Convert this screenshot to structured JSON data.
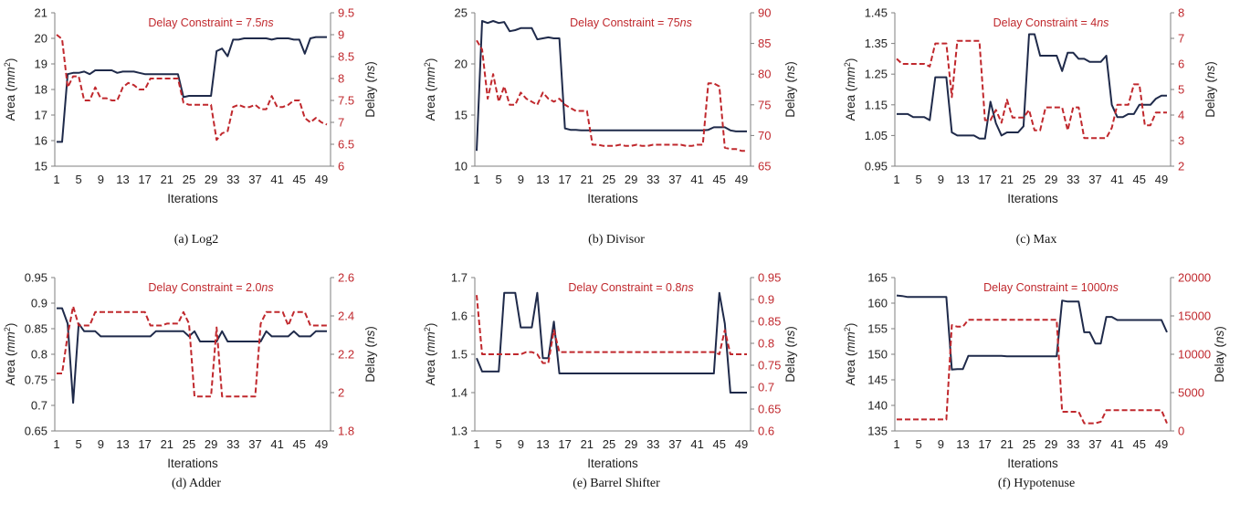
{
  "colors": {
    "area": "#1f2a4a",
    "delay": "#c0282d",
    "axis": "#7f7f7f"
  },
  "chart_data": [
    {
      "type": "line",
      "caption": "(a) Log2",
      "annotation": {
        "prefix": "Delay Constraint = 7.5",
        "unit": "ns"
      },
      "xlabel": "Iterations",
      "ylabel": {
        "text": "Area (",
        "unit": "mm",
        "sup": "2",
        "close": ")"
      },
      "ylabel2": {
        "text": "Delay (",
        "unit": "ns",
        "close": ")"
      },
      "x_ticks": [
        "1",
        "5",
        "9",
        "13",
        "17",
        "21",
        "25",
        "29",
        "33",
        "37",
        "41",
        "45",
        "49"
      ],
      "ylim": [
        15,
        21
      ],
      "yticks": [
        "15",
        "16",
        "17",
        "18",
        "19",
        "20",
        "21"
      ],
      "ylim2": [
        6,
        9.5
      ],
      "yticks2": [
        "6",
        "6.5",
        "7",
        "7.5",
        "8",
        "8.5",
        "9",
        "9.5"
      ],
      "series": [
        {
          "axis": "left",
          "style": "solid",
          "values": [
            15.95,
            15.95,
            18.6,
            18.65,
            18.65,
            18.7,
            18.6,
            18.75,
            18.75,
            18.75,
            18.75,
            18.65,
            18.7,
            18.7,
            18.7,
            18.65,
            18.6,
            18.6,
            18.6,
            18.6,
            18.6,
            18.6,
            18.6,
            17.7,
            17.75,
            17.75,
            17.75,
            17.75,
            17.75,
            19.5,
            19.6,
            19.3,
            19.95,
            19.95,
            20.0,
            20.0,
            20.0,
            20.0,
            20.0,
            19.95,
            20.0,
            20.0,
            20.0,
            19.95,
            19.95,
            19.4,
            20.0,
            20.05,
            20.05,
            20.05
          ]
        },
        {
          "axis": "right",
          "style": "dashed",
          "values": [
            9.0,
            8.9,
            7.8,
            8.05,
            8.05,
            7.5,
            7.5,
            7.8,
            7.55,
            7.55,
            7.5,
            7.5,
            7.8,
            7.9,
            7.85,
            7.75,
            7.75,
            8.0,
            8.0,
            8.0,
            8.0,
            8.0,
            8.0,
            7.45,
            7.4,
            7.4,
            7.4,
            7.4,
            7.4,
            6.6,
            6.75,
            6.8,
            7.35,
            7.4,
            7.35,
            7.35,
            7.4,
            7.3,
            7.3,
            7.6,
            7.35,
            7.35,
            7.4,
            7.5,
            7.5,
            7.1,
            7.0,
            7.1,
            7.0,
            6.95
          ]
        }
      ]
    },
    {
      "type": "line",
      "caption": "(b) Divisor",
      "annotation": {
        "prefix": "Delay Constraint = 75",
        "unit": "ns"
      },
      "xlabel": "Iterations",
      "ylabel": {
        "text": "Area (",
        "unit": "mm",
        "sup": "2",
        "close": ")"
      },
      "ylabel2": {
        "text": "Delay (",
        "unit": "ns",
        "close": ")"
      },
      "x_ticks": [
        "1",
        "5",
        "9",
        "13",
        "17",
        "21",
        "25",
        "29",
        "33",
        "37",
        "41",
        "45",
        "49"
      ],
      "ylim": [
        10,
        25
      ],
      "yticks": [
        "10",
        "15",
        "20",
        "25"
      ],
      "ylim2": [
        65,
        90
      ],
      "yticks2": [
        "65",
        "70",
        "75",
        "80",
        "85",
        "90"
      ],
      "series": [
        {
          "axis": "left",
          "style": "solid",
          "values": [
            11.5,
            24.2,
            24.0,
            24.2,
            24.0,
            24.1,
            23.2,
            23.3,
            23.5,
            23.5,
            23.5,
            22.4,
            22.5,
            22.6,
            22.5,
            22.5,
            13.7,
            13.55,
            13.55,
            13.5,
            13.5,
            13.5,
            13.5,
            13.5,
            13.5,
            13.5,
            13.5,
            13.5,
            13.5,
            13.5,
            13.5,
            13.5,
            13.5,
            13.5,
            13.5,
            13.5,
            13.5,
            13.5,
            13.5,
            13.5,
            13.5,
            13.5,
            13.55,
            13.8,
            13.8,
            13.8,
            13.5,
            13.4,
            13.4,
            13.4
          ]
        },
        {
          "axis": "right",
          "style": "dashed",
          "values": [
            85.5,
            84.0,
            76.0,
            80.0,
            75.5,
            78.0,
            75.0,
            75.0,
            77.0,
            76.0,
            75.5,
            75.0,
            77.0,
            76.0,
            75.5,
            76.0,
            75.0,
            74.5,
            74.0,
            74.0,
            74.0,
            68.5,
            68.5,
            68.3,
            68.3,
            68.3,
            68.5,
            68.3,
            68.3,
            68.5,
            68.3,
            68.3,
            68.5,
            68.5,
            68.5,
            68.5,
            68.5,
            68.5,
            68.3,
            68.3,
            68.5,
            68.5,
            78.5,
            78.5,
            78.0,
            68.0,
            67.8,
            67.8,
            67.5,
            67.5
          ]
        }
      ]
    },
    {
      "type": "line",
      "caption": "(c) Max",
      "annotation": {
        "prefix": "Delay Constraint = 4",
        "unit": "ns"
      },
      "xlabel": "Iterations",
      "ylabel": {
        "text": "Area (",
        "unit": "mm",
        "sup": "2",
        "close": ")"
      },
      "ylabel2": {
        "text": "Delay (",
        "unit": "ns",
        "close": ")"
      },
      "x_ticks": [
        "1",
        "5",
        "9",
        "13",
        "17",
        "21",
        "25",
        "29",
        "33",
        "37",
        "41",
        "45",
        "49"
      ],
      "ylim": [
        0.95,
        1.45
      ],
      "yticks": [
        "0.95",
        "1.05",
        "1.15",
        "1.25",
        "1.35",
        "1.45"
      ],
      "ylim2": [
        2,
        8
      ],
      "yticks2": [
        "2",
        "3",
        "4",
        "5",
        "6",
        "7",
        "8"
      ],
      "series": [
        {
          "axis": "left",
          "style": "solid",
          "values": [
            1.12,
            1.12,
            1.12,
            1.11,
            1.11,
            1.11,
            1.1,
            1.24,
            1.24,
            1.24,
            1.06,
            1.05,
            1.05,
            1.05,
            1.05,
            1.04,
            1.04,
            1.16,
            1.09,
            1.05,
            1.06,
            1.06,
            1.06,
            1.08,
            1.38,
            1.38,
            1.31,
            1.31,
            1.31,
            1.31,
            1.26,
            1.32,
            1.32,
            1.3,
            1.3,
            1.29,
            1.29,
            1.29,
            1.31,
            1.15,
            1.11,
            1.11,
            1.12,
            1.12,
            1.15,
            1.15,
            1.15,
            1.17,
            1.18,
            1.18
          ]
        },
        {
          "axis": "right",
          "style": "dashed",
          "values": [
            6.2,
            6.0,
            6.0,
            6.0,
            6.0,
            6.0,
            5.9,
            6.8,
            6.8,
            6.8,
            4.7,
            6.9,
            6.9,
            6.9,
            6.9,
            6.9,
            3.8,
            3.8,
            4.2,
            3.7,
            4.6,
            3.9,
            3.9,
            3.9,
            4.2,
            3.4,
            3.4,
            4.3,
            4.3,
            4.3,
            4.3,
            3.4,
            4.3,
            4.3,
            3.1,
            3.1,
            3.1,
            3.1,
            3.1,
            3.5,
            4.4,
            4.4,
            4.4,
            5.2,
            5.2,
            3.6,
            3.6,
            4.1,
            4.1,
            4.1
          ]
        }
      ]
    },
    {
      "type": "line",
      "caption": "(d) Adder",
      "annotation": {
        "prefix": "Delay Constraint = 2.0",
        "unit": "ns"
      },
      "xlabel": "Iterations",
      "ylabel": {
        "text": "Area (",
        "unit": "mm",
        "sup": "2",
        "close": ")"
      },
      "ylabel2": {
        "text": "Delay (",
        "unit": "ns",
        "close": ")"
      },
      "x_ticks": [
        "1",
        "5",
        "9",
        "13",
        "17",
        "21",
        "25",
        "29",
        "33",
        "37",
        "41",
        "45",
        "49"
      ],
      "ylim": [
        0.65,
        0.95
      ],
      "yticks": [
        "0.65",
        "0.7",
        "0.75",
        "0.8",
        "0.85",
        "0.9",
        "0.95"
      ],
      "ylim2": [
        1.8,
        2.6
      ],
      "yticks2": [
        "1.8",
        "2",
        "2.2",
        "2.4",
        "2.6"
      ],
      "series": [
        {
          "axis": "left",
          "style": "solid",
          "values": [
            0.89,
            0.89,
            0.86,
            0.705,
            0.86,
            0.845,
            0.845,
            0.845,
            0.835,
            0.835,
            0.835,
            0.835,
            0.835,
            0.835,
            0.835,
            0.835,
            0.835,
            0.835,
            0.845,
            0.845,
            0.845,
            0.845,
            0.845,
            0.845,
            0.835,
            0.845,
            0.825,
            0.825,
            0.825,
            0.825,
            0.845,
            0.825,
            0.825,
            0.825,
            0.825,
            0.825,
            0.825,
            0.825,
            0.845,
            0.835,
            0.835,
            0.835,
            0.835,
            0.845,
            0.835,
            0.835,
            0.835,
            0.845,
            0.845,
            0.845
          ]
        },
        {
          "axis": "right",
          "style": "dashed",
          "values": [
            2.1,
            2.1,
            2.3,
            2.45,
            2.35,
            2.35,
            2.35,
            2.42,
            2.42,
            2.42,
            2.42,
            2.42,
            2.42,
            2.42,
            2.42,
            2.42,
            2.42,
            2.35,
            2.35,
            2.35,
            2.36,
            2.36,
            2.36,
            2.42,
            2.36,
            1.98,
            1.98,
            1.98,
            1.98,
            2.34,
            1.98,
            1.98,
            1.98,
            1.98,
            1.98,
            1.98,
            1.98,
            2.36,
            2.42,
            2.42,
            2.42,
            2.42,
            2.35,
            2.42,
            2.42,
            2.42,
            2.35,
            2.35,
            2.35,
            2.35
          ]
        }
      ]
    },
    {
      "type": "line",
      "caption": "(e) Barrel Shifter",
      "annotation": {
        "prefix": "Delay Constraint = 0.8",
        "unit": "ns"
      },
      "xlabel": "Iterations",
      "ylabel": {
        "text": "Area (",
        "unit": "mm",
        "sup": "2",
        "close": ")"
      },
      "ylabel2": {
        "text": "Delay (",
        "unit": "ns",
        "close": ")"
      },
      "x_ticks": [
        "1",
        "5",
        "9",
        "13",
        "17",
        "21",
        "25",
        "29",
        "33",
        "37",
        "41",
        "45",
        "49"
      ],
      "ylim": [
        1.3,
        1.7
      ],
      "yticks": [
        "1.3",
        "1.4",
        "1.5",
        "1.6",
        "1.7"
      ],
      "ylim2": [
        0.6,
        0.95
      ],
      "yticks2": [
        "0.6",
        "0.65",
        "0.7",
        "0.75",
        "0.8",
        "0.85",
        "0.9",
        "0.95"
      ],
      "series": [
        {
          "axis": "left",
          "style": "solid",
          "values": [
            1.49,
            1.455,
            1.455,
            1.455,
            1.455,
            1.66,
            1.66,
            1.66,
            1.57,
            1.57,
            1.57,
            1.66,
            1.49,
            1.49,
            1.585,
            1.45,
            1.45,
            1.45,
            1.45,
            1.45,
            1.45,
            1.45,
            1.45,
            1.45,
            1.45,
            1.45,
            1.45,
            1.45,
            1.45,
            1.45,
            1.45,
            1.45,
            1.45,
            1.45,
            1.45,
            1.45,
            1.45,
            1.45,
            1.45,
            1.45,
            1.45,
            1.45,
            1.45,
            1.45,
            1.66,
            1.58,
            1.4,
            1.4,
            1.4,
            1.4
          ]
        },
        {
          "axis": "right",
          "style": "dashed",
          "values": [
            0.91,
            0.775,
            0.775,
            0.775,
            0.775,
            0.775,
            0.775,
            0.775,
            0.775,
            0.78,
            0.78,
            0.775,
            0.755,
            0.755,
            0.83,
            0.78,
            0.78,
            0.78,
            0.78,
            0.78,
            0.78,
            0.78,
            0.78,
            0.78,
            0.78,
            0.78,
            0.78,
            0.78,
            0.78,
            0.78,
            0.78,
            0.78,
            0.78,
            0.78,
            0.78,
            0.78,
            0.78,
            0.78,
            0.78,
            0.78,
            0.78,
            0.78,
            0.78,
            0.78,
            0.775,
            0.83,
            0.775,
            0.775,
            0.775,
            0.775
          ]
        }
      ]
    },
    {
      "type": "line",
      "caption": "(f) Hypotenuse",
      "annotation": {
        "prefix": "Delay Constraint = 1000",
        "unit": "ns"
      },
      "xlabel": "Iterations",
      "ylabel": {
        "text": "Area (",
        "unit": "mm",
        "sup": "2",
        "close": ")"
      },
      "ylabel2": {
        "text": "Delay (",
        "unit": "ns",
        "close": ")"
      },
      "x_ticks": [
        "1",
        "5",
        "9",
        "13",
        "17",
        "21",
        "25",
        "29",
        "33",
        "37",
        "41",
        "45",
        "49"
      ],
      "ylim": [
        135,
        165
      ],
      "yticks": [
        "135",
        "140",
        "145",
        "150",
        "155",
        "160",
        "165"
      ],
      "ylim2": [
        0,
        20000
      ],
      "yticks2": [
        "0",
        "5000",
        "10000",
        "15000",
        "20000"
      ],
      "series": [
        {
          "axis": "left",
          "style": "solid",
          "values": [
            161.5,
            161.4,
            161.2,
            161.2,
            161.2,
            161.2,
            161.2,
            161.2,
            161.2,
            161.2,
            147.0,
            147.1,
            147.1,
            149.7,
            149.7,
            149.7,
            149.7,
            149.7,
            149.7,
            149.7,
            149.6,
            149.6,
            149.6,
            149.6,
            149.6,
            149.6,
            149.6,
            149.6,
            149.6,
            149.6,
            160.5,
            160.3,
            160.3,
            160.3,
            154.3,
            154.3,
            152.1,
            152.1,
            157.3,
            157.3,
            156.7,
            156.7,
            156.7,
            156.7,
            156.7,
            156.7,
            156.7,
            156.7,
            156.7,
            154.3
          ]
        },
        {
          "axis": "right",
          "style": "dashed",
          "values": [
            1500,
            1500,
            1500,
            1500,
            1500,
            1500,
            1500,
            1500,
            1500,
            1500,
            13800,
            13600,
            13600,
            14500,
            14500,
            14500,
            14500,
            14500,
            14500,
            14500,
            14500,
            14500,
            14500,
            14500,
            14500,
            14500,
            14500,
            14500,
            14500,
            14500,
            2500,
            2500,
            2500,
            2500,
            1000,
            1000,
            1000,
            1200,
            2700,
            2700,
            2700,
            2700,
            2700,
            2700,
            2700,
            2700,
            2700,
            2700,
            2700,
            1000
          ]
        }
      ]
    }
  ]
}
